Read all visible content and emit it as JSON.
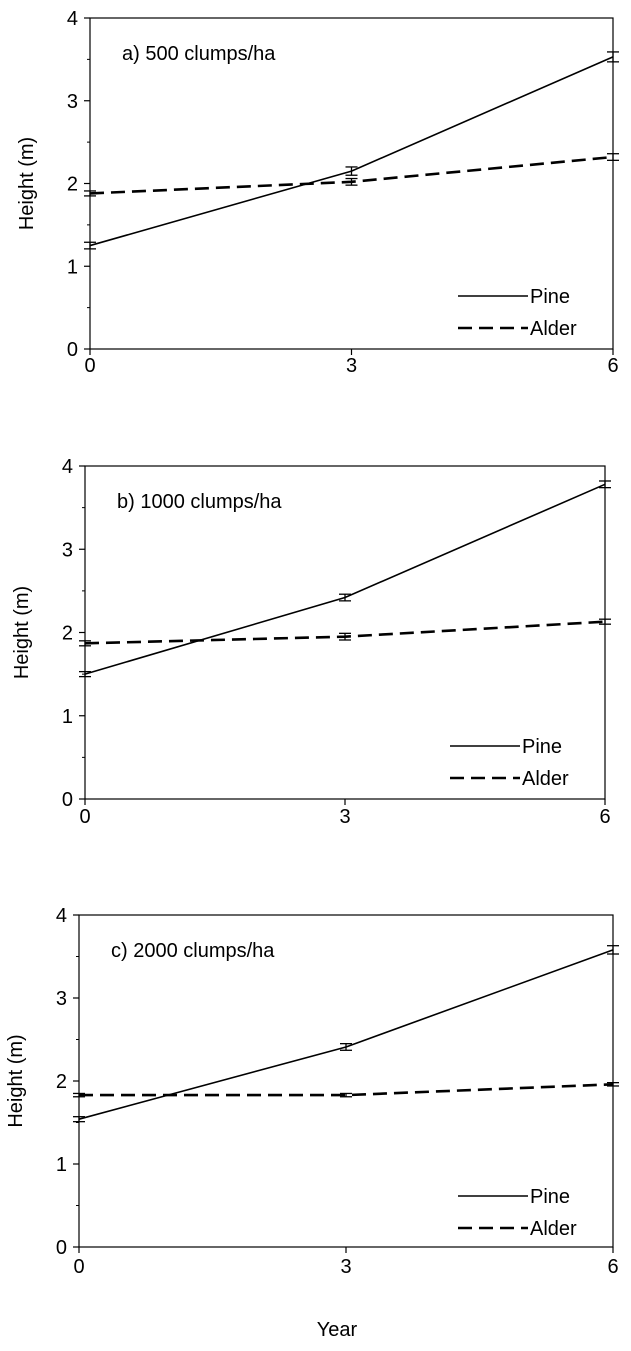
{
  "chart_data": [
    {
      "type": "line",
      "title": "a) 500 clumps/ha",
      "xlabel": "",
      "ylabel": "Height (m)",
      "x": [
        0,
        3,
        6
      ],
      "xticks": [
        "0",
        "3",
        "6"
      ],
      "yticks": [
        "0",
        "1",
        "2",
        "3",
        "4"
      ],
      "xlim": [
        0,
        6
      ],
      "ylim": [
        0,
        4
      ],
      "grid": false,
      "legend": "bottom-right",
      "series": [
        {
          "name": "Pine",
          "style": "solid",
          "values": [
            1.25,
            2.15,
            3.53
          ],
          "errors": [
            0.04,
            0.05,
            0.06
          ]
        },
        {
          "name": "Alder",
          "style": "dashed",
          "values": [
            1.88,
            2.02,
            2.32
          ],
          "errors": [
            0.03,
            0.04,
            0.04
          ]
        }
      ]
    },
    {
      "type": "line",
      "title": "b) 1000 clumps/ha",
      "xlabel": "",
      "ylabel": "Height (m)",
      "x": [
        0,
        3,
        6
      ],
      "xticks": [
        "0",
        "3",
        "6"
      ],
      "yticks": [
        "0",
        "1",
        "2",
        "3",
        "4"
      ],
      "xlim": [
        0,
        6
      ],
      "ylim": [
        0,
        4
      ],
      "grid": false,
      "legend": "bottom-right",
      "series": [
        {
          "name": "Pine",
          "style": "solid",
          "values": [
            1.5,
            2.42,
            3.78
          ],
          "errors": [
            0.03,
            0.04,
            0.04
          ]
        },
        {
          "name": "Alder",
          "style": "dashed",
          "values": [
            1.87,
            1.95,
            2.13
          ],
          "errors": [
            0.03,
            0.04,
            0.03
          ]
        }
      ]
    },
    {
      "type": "line",
      "title": "c) 2000 clumps/ha",
      "xlabel": "Year",
      "ylabel": "Height (m)",
      "x": [
        0,
        3,
        6
      ],
      "xticks": [
        "0",
        "3",
        "6"
      ],
      "yticks": [
        "0",
        "1",
        "2",
        "3",
        "4"
      ],
      "xlim": [
        0,
        6
      ],
      "ylim": [
        0,
        4
      ],
      "grid": false,
      "legend": "bottom-right",
      "series": [
        {
          "name": "Pine",
          "style": "solid",
          "values": [
            1.54,
            2.41,
            3.58
          ],
          "errors": [
            0.03,
            0.04,
            0.05
          ]
        },
        {
          "name": "Alder",
          "style": "dashed",
          "values": [
            1.83,
            1.83,
            1.96
          ],
          "errors": [
            0.02,
            0.02,
            0.02
          ]
        }
      ]
    }
  ]
}
